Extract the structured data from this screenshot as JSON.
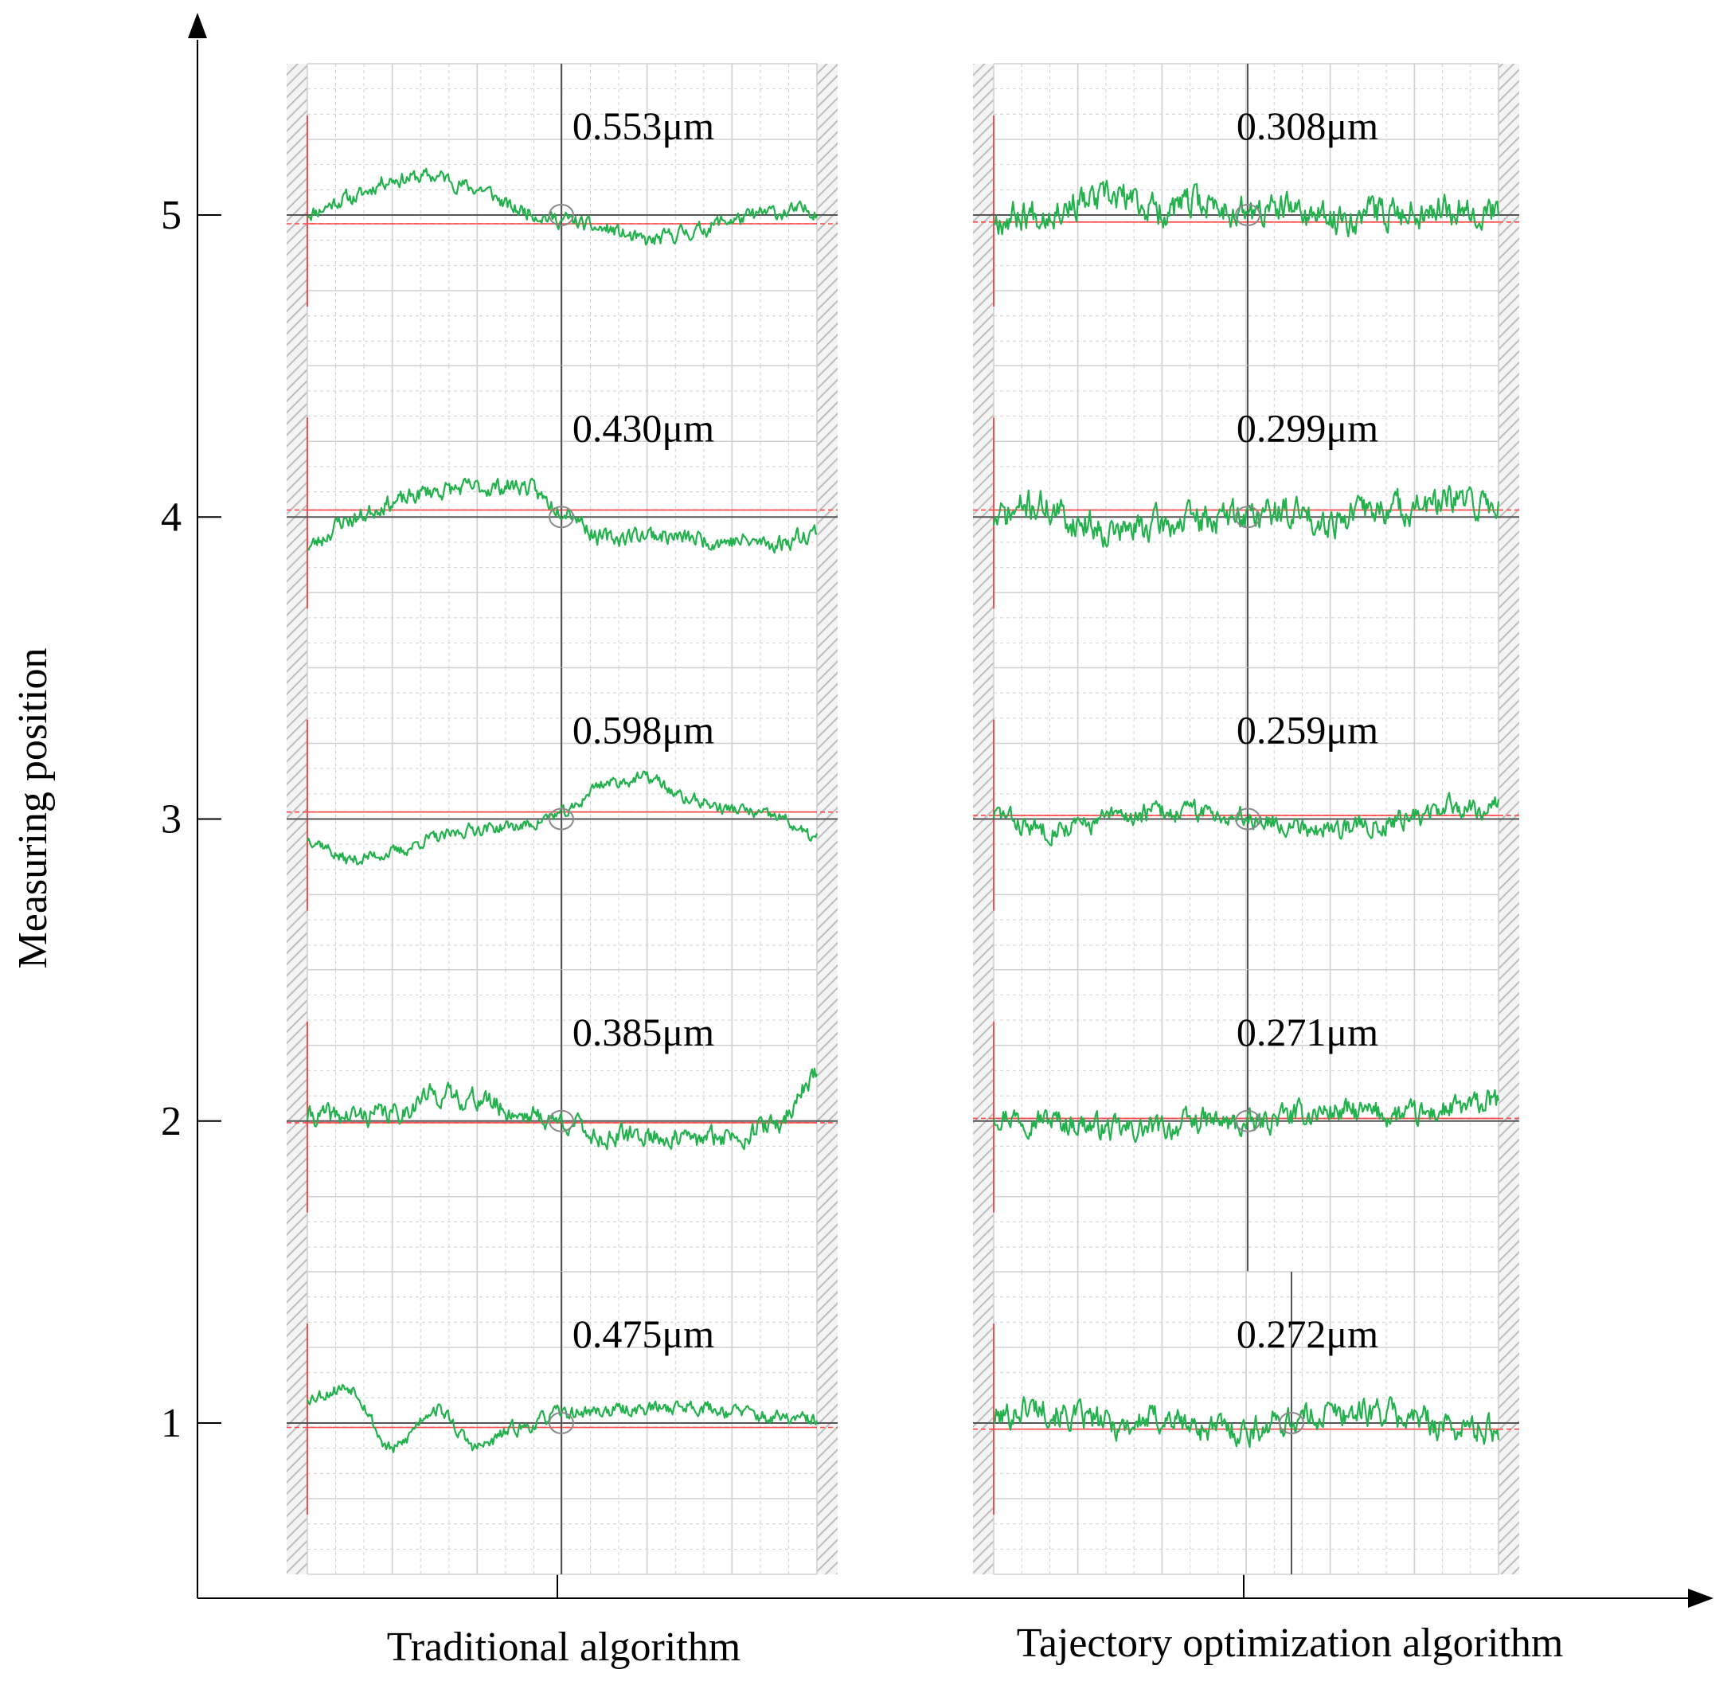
{
  "chart_data": {
    "type": "line",
    "title": "",
    "ylabel": "Measuring position",
    "xlabel": "",
    "categories": [
      "Traditional algorithm",
      "Tajectory optimization algorithm"
    ],
    "y_ticks": [
      "1",
      "2",
      "3",
      "4",
      "5"
    ],
    "ylim": [
      0.5,
      5.6
    ],
    "panels": [
      {
        "column": "Traditional algorithm",
        "position": 5,
        "value_label": "0.553μm",
        "value": 0.553,
        "seed": 11,
        "shape": [
          0.05,
          0.35,
          0.75,
          0.8,
          0.55,
          0.1,
          -0.1,
          -0.3,
          -0.55,
          -0.35,
          -0.1,
          0.05,
          0.1
        ],
        "noise": 0.22,
        "ref_offset": 0.1,
        "mean_offset": 0.0
      },
      {
        "column": "Traditional algorithm",
        "position": 4,
        "value_label": "0.430μm",
        "value": 0.43,
        "seed": 23,
        "shape": [
          -0.6,
          -0.05,
          0.3,
          0.55,
          0.6,
          0.65,
          0.2,
          -0.45,
          -0.35,
          -0.45,
          -0.5,
          -0.55,
          -0.3
        ],
        "noise": 0.25,
        "ref_offset": -0.08,
        "mean_offset": 0.0
      },
      {
        "column": "Traditional algorithm",
        "position": 3,
        "value_label": "0.598μm",
        "value": 0.598,
        "seed": 37,
        "shape": [
          -0.4,
          -0.85,
          -0.7,
          -0.4,
          -0.2,
          -0.15,
          0.1,
          0.75,
          0.85,
          0.4,
          0.2,
          0.05,
          -0.4
        ],
        "noise": 0.18,
        "ref_offset": -0.08,
        "mean_offset": 0.0
      },
      {
        "column": "Traditional algorithm",
        "position": 2,
        "value_label": "0.385μm",
        "value": 0.385,
        "seed": 41,
        "shape": [
          0.1,
          0.1,
          0.15,
          0.55,
          0.45,
          0.15,
          0.0,
          -0.35,
          -0.3,
          -0.4,
          -0.3,
          -0.1,
          0.95
        ],
        "noise": 0.3,
        "ref_offset": 0.02,
        "mean_offset": 0.0
      },
      {
        "column": "Traditional algorithm",
        "position": 1,
        "value_label": "0.475μm",
        "value": 0.475,
        "seed": 53,
        "shape": [
          0.55,
          0.75,
          -0.55,
          0.3,
          -0.5,
          -0.1,
          0.2,
          0.25,
          0.3,
          0.35,
          0.25,
          0.1,
          0.05
        ],
        "noise": 0.2,
        "ref_offset": 0.05,
        "mean_offset": 0.0
      },
      {
        "column": "Tajectory optimization algorithm",
        "position": 5,
        "value_label": "0.308μm",
        "value": 0.308,
        "seed": 67,
        "shape": [
          -0.05,
          0.05,
          0.25,
          0.35,
          0.1,
          0.25,
          0.05,
          0.1,
          -0.1,
          0.05,
          0.1,
          0.2,
          0.05
        ],
        "noise": 0.45,
        "ref_offset": 0.08,
        "mean_offset": 0.0
      },
      {
        "column": "Tajectory optimization algorithm",
        "position": 4,
        "value_label": "0.299μm",
        "value": 0.299,
        "seed": 71,
        "shape": [
          -0.05,
          0.25,
          -0.1,
          -0.3,
          -0.15,
          -0.05,
          0.05,
          0.1,
          -0.05,
          0.15,
          0.2,
          0.3,
          0.25
        ],
        "noise": 0.45,
        "ref_offset": -0.08,
        "mean_offset": 0.0
      },
      {
        "column": "Tajectory optimization algorithm",
        "position": 3,
        "value_label": "0.259μm",
        "value": 0.259,
        "seed": 83,
        "shape": [
          0.1,
          -0.2,
          -0.15,
          0.05,
          0.15,
          0.15,
          0.05,
          -0.1,
          -0.2,
          -0.1,
          0.05,
          0.25,
          0.25
        ],
        "noise": 0.3,
        "ref_offset": -0.04,
        "mean_offset": 0.0
      },
      {
        "column": "Tajectory optimization algorithm",
        "position": 2,
        "value_label": "0.271μm",
        "value": 0.271,
        "seed": 97,
        "shape": [
          0.15,
          0.05,
          -0.05,
          -0.2,
          -0.15,
          0.0,
          -0.1,
          0.1,
          0.2,
          0.15,
          0.1,
          0.25,
          0.4
        ],
        "noise": 0.35,
        "ref_offset": -0.03,
        "mean_offset": 0.0
      },
      {
        "column": "Tajectory optimization algorithm",
        "position": 1,
        "value_label": "0.272μm",
        "value": 0.272,
        "seed": 101,
        "shape": [
          0.1,
          0.35,
          0.1,
          -0.05,
          0.1,
          -0.1,
          -0.15,
          0.05,
          0.2,
          0.25,
          0.1,
          -0.1,
          -0.15
        ],
        "noise": 0.4,
        "ref_offset": 0.07,
        "mean_offset": 0.0
      }
    ]
  },
  "colors": {
    "axis": "#000000",
    "signal": "#22b14c",
    "reference": "#ff4a4a",
    "mean_line": "#555555",
    "grid": "#d0d0d0",
    "hatch": "#bdbdbd"
  }
}
